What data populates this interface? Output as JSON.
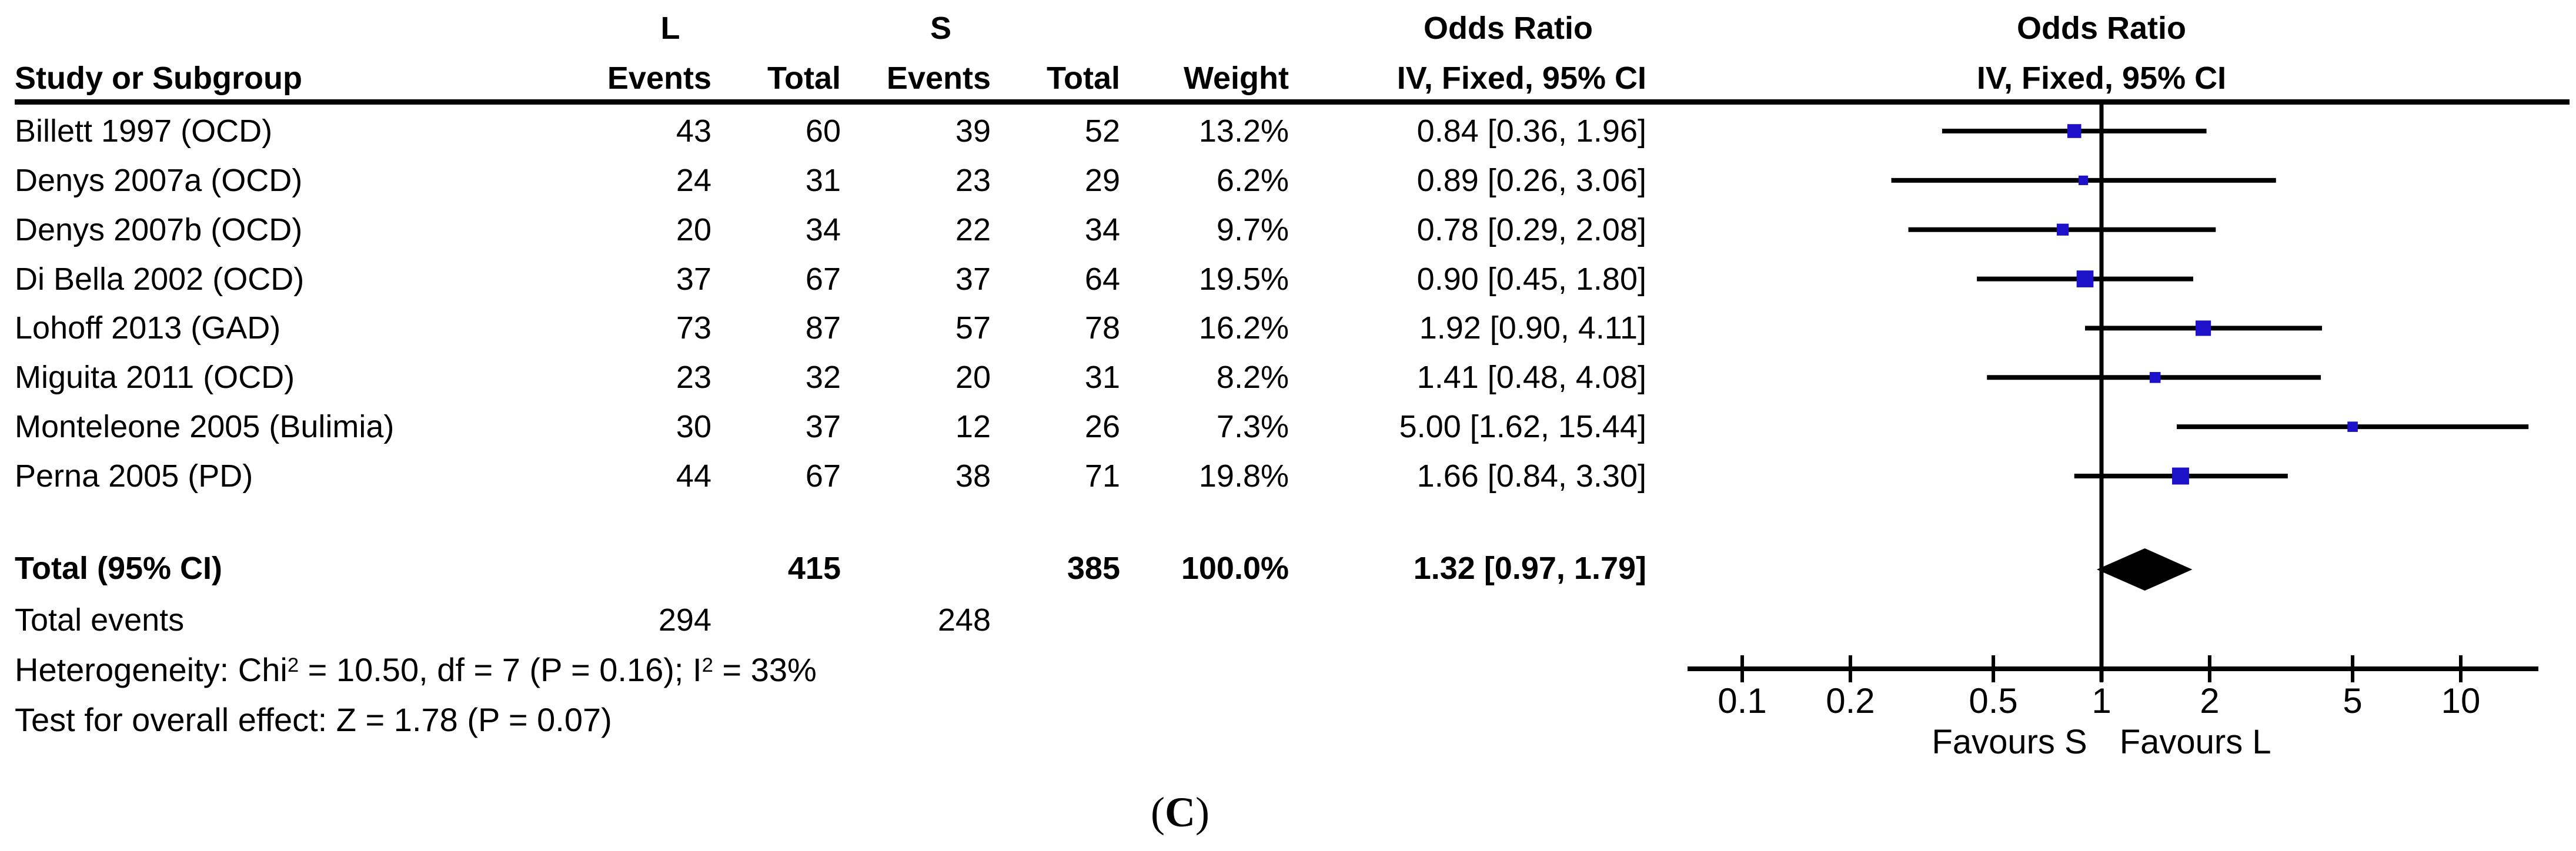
{
  "header": {
    "study_col": "Study or Subgroup",
    "group_left": "L",
    "group_right": "S",
    "l_events": "Events",
    "l_total": "Total",
    "s_events": "Events",
    "s_total": "Total",
    "weight": "Weight",
    "or_title": "Odds Ratio",
    "or_subtitle": "IV, Fixed, 95% CI",
    "plot_or_title": "Odds Ratio",
    "plot_or_subtitle": "IV, Fixed, 95% CI"
  },
  "chart_data": {
    "type": "forest",
    "effect_label": "Odds Ratio",
    "model": "IV, Fixed, 95% CI",
    "x_scale": "log",
    "x_ticks": [
      "0.1",
      "0.2",
      "0.5",
      "1",
      "2",
      "5",
      "10"
    ],
    "x_tick_values": [
      0.1,
      0.2,
      0.5,
      1,
      2,
      5,
      10
    ],
    "favours_left": "Favours S",
    "favours_right": "Favours L",
    "studies": [
      {
        "name": "Billett 1997 (OCD)",
        "l_events": "43",
        "l_total": "60",
        "s_events": "39",
        "s_total": "52",
        "weight": "13.2%",
        "weight_pct": 13.2,
        "or": 0.84,
        "ci_low": 0.36,
        "ci_high": 1.96,
        "or_ci": "0.84 [0.36, 1.96]"
      },
      {
        "name": "Denys 2007a (OCD)",
        "l_events": "24",
        "l_total": "31",
        "s_events": "23",
        "s_total": "29",
        "weight": "6.2%",
        "weight_pct": 6.2,
        "or": 0.89,
        "ci_low": 0.26,
        "ci_high": 3.06,
        "or_ci": "0.89 [0.26, 3.06]"
      },
      {
        "name": "Denys 2007b (OCD)",
        "l_events": "20",
        "l_total": "34",
        "s_events": "22",
        "s_total": "34",
        "weight": "9.7%",
        "weight_pct": 9.7,
        "or": 0.78,
        "ci_low": 0.29,
        "ci_high": 2.08,
        "or_ci": "0.78 [0.29, 2.08]"
      },
      {
        "name": "Di Bella 2002 (OCD)",
        "l_events": "37",
        "l_total": "67",
        "s_events": "37",
        "s_total": "64",
        "weight": "19.5%",
        "weight_pct": 19.5,
        "or": 0.9,
        "ci_low": 0.45,
        "ci_high": 1.8,
        "or_ci": "0.90 [0.45, 1.80]"
      },
      {
        "name": "Lohoff 2013 (GAD)",
        "l_events": "73",
        "l_total": "87",
        "s_events": "57",
        "s_total": "78",
        "weight": "16.2%",
        "weight_pct": 16.2,
        "or": 1.92,
        "ci_low": 0.9,
        "ci_high": 4.11,
        "or_ci": "1.92 [0.90, 4.11]"
      },
      {
        "name": "Miguita 2011 (OCD)",
        "l_events": "23",
        "l_total": "32",
        "s_events": "20",
        "s_total": "31",
        "weight": "8.2%",
        "weight_pct": 8.2,
        "or": 1.41,
        "ci_low": 0.48,
        "ci_high": 4.08,
        "or_ci": "1.41 [0.48, 4.08]"
      },
      {
        "name": "Monteleone 2005 (Bulimia)",
        "l_events": "30",
        "l_total": "37",
        "s_events": "12",
        "s_total": "26",
        "weight": "7.3%",
        "weight_pct": 7.3,
        "or": 5.0,
        "ci_low": 1.62,
        "ci_high": 15.44,
        "or_ci": "5.00 [1.62, 15.44]"
      },
      {
        "name": "Perna 2005 (PD)",
        "l_events": "44",
        "l_total": "67",
        "s_events": "38",
        "s_total": "71",
        "weight": "19.8%",
        "weight_pct": 19.8,
        "or": 1.66,
        "ci_low": 0.84,
        "ci_high": 3.3,
        "or_ci": "1.66 [0.84, 3.30]"
      }
    ],
    "total": {
      "label": "Total (95% CI)",
      "l_total": "415",
      "s_total": "385",
      "weight": "100.0%",
      "or": 1.32,
      "ci_low": 0.97,
      "ci_high": 1.79,
      "or_ci": "1.32 [0.97, 1.79]"
    },
    "total_events": {
      "label": "Total events",
      "l": "294",
      "s": "248"
    },
    "heterogeneity": {
      "pre": "Heterogeneity: Chi",
      "sup1": "2",
      "mid": " = 10.50, df = 7 (P = 0.16); I",
      "sup2": "2",
      "post": " = 33%",
      "chi2": 10.5,
      "df": 7,
      "p": 0.16,
      "i2_pct": 33
    },
    "overall_effect": "Test for overall effect: Z = 1.78 (P = 0.07)",
    "overall_effect_stats": {
      "z": 1.78,
      "p": 0.07
    }
  },
  "caption": {
    "open": "(",
    "letter": "C",
    "close": ")"
  },
  "colors": {
    "square": "#1D12CA",
    "line": "#000000",
    "diamond": "#000000"
  }
}
